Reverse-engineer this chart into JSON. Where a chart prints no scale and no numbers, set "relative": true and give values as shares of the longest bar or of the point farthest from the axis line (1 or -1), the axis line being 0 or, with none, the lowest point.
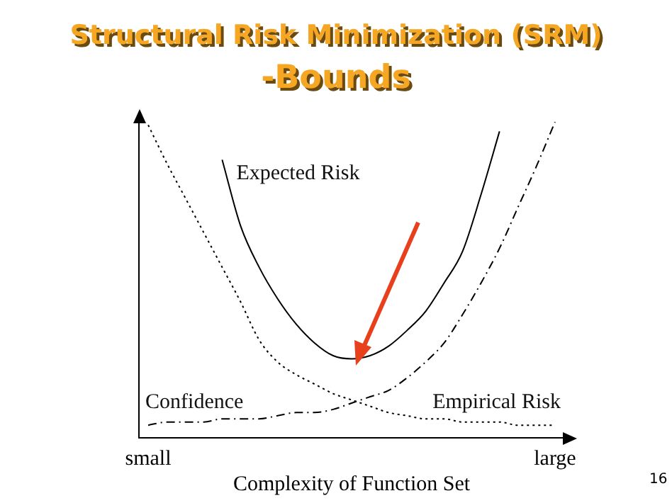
{
  "chart_data": {
    "type": "line",
    "title": "Structural Risk Minimization (SRM)",
    "subtitle": "-Bounds",
    "xlabel": "Complexity of Function Set",
    "annotations": [
      "16"
    ],
    "relative": true,
    "grid": false,
    "legend": false,
    "marker": "none",
    "categories": [
      "small",
      null,
      null,
      null,
      null,
      null,
      null,
      null,
      null,
      null,
      null,
      null,
      null,
      null,
      null,
      null,
      null,
      null,
      null,
      null,
      null,
      null,
      "large"
    ],
    "series": [
      {
        "name": "Expected Risk",
        "color": "#000000",
        "line_style": "solid",
        "values": [
          null,
          null,
          null,
          null,
          0.88,
          0.67,
          0.54,
          0.44,
          0.36,
          0.3,
          0.26,
          0.25,
          0.26,
          0.29,
          0.34,
          0.4,
          0.49,
          0.59,
          0.77,
          0.97,
          null,
          null,
          null
        ]
      },
      {
        "name": "Empirical Risk",
        "color": "#000000",
        "line_style": "dotted",
        "values": [
          0.99,
          0.87,
          0.76,
          0.65,
          0.54,
          0.43,
          0.31,
          0.24,
          0.2,
          0.17,
          0.14,
          0.12,
          0.1,
          0.08,
          0.07,
          0.06,
          0.06,
          0.05,
          0.05,
          0.05,
          0.04,
          0.04,
          0.04
        ]
      },
      {
        "name": "Confidence",
        "color": "#000000",
        "line_style": "dashed",
        "values": [
          0.04,
          0.05,
          0.05,
          0.05,
          0.06,
          0.06,
          0.06,
          0.07,
          0.08,
          0.08,
          0.09,
          0.11,
          0.13,
          0.15,
          0.19,
          0.24,
          0.3,
          0.39,
          0.49,
          0.6,
          0.73,
          0.86,
          1.0
        ]
      }
    ]
  }
}
